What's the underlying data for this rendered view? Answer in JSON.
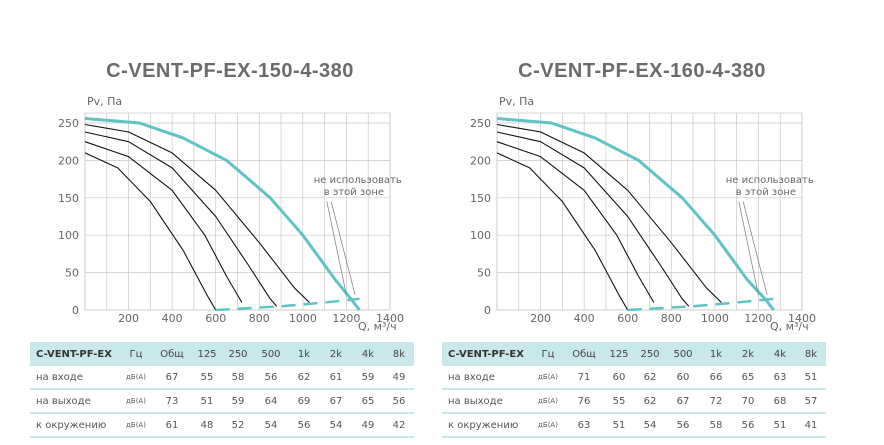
{
  "chart_data": [
    {
      "type": "line",
      "title": "C-VENT-PF-EX-150-4-380",
      "ylabel": "Pv, Па",
      "xlabel": "Q, м³/ч",
      "xlim": [
        0,
        1400
      ],
      "ylim": [
        0,
        250
      ],
      "x_ticks": [
        "200",
        "400",
        "600",
        "800",
        "1000",
        "1200",
        "1400"
      ],
      "y_ticks": [
        "0",
        "50",
        "100",
        "150",
        "200",
        "250"
      ],
      "grid": true,
      "annotation": [
        "не использовать",
        "в этой зоне"
      ],
      "series": [
        {
          "points": [
            [
              0,
              256
            ],
            [
              250,
              250
            ],
            [
              450,
              230
            ],
            [
              650,
              200
            ],
            [
              850,
              150
            ],
            [
              1000,
              100
            ],
            [
              1150,
              40
            ],
            [
              1220,
              15
            ],
            [
              1260,
              0
            ]
          ]
        },
        {
          "points": [
            [
              0,
              248
            ],
            [
              200,
              238
            ],
            [
              400,
              210
            ],
            [
              600,
              160
            ],
            [
              800,
              90
            ],
            [
              960,
              30
            ],
            [
              1030,
              10
            ]
          ]
        },
        {
          "points": [
            [
              0,
              238
            ],
            [
              200,
              225
            ],
            [
              400,
              190
            ],
            [
              600,
              125
            ],
            [
              750,
              60
            ],
            [
              850,
              15
            ],
            [
              880,
              5
            ]
          ]
        },
        {
          "points": [
            [
              0,
              225
            ],
            [
              200,
              205
            ],
            [
              400,
              160
            ],
            [
              550,
              100
            ],
            [
              650,
              45
            ],
            [
              720,
              10
            ]
          ]
        },
        {
          "points": [
            [
              0,
              210
            ],
            [
              150,
              190
            ],
            [
              300,
              145
            ],
            [
              450,
              80
            ],
            [
              560,
              20
            ],
            [
              600,
              0
            ]
          ]
        },
        {
          "points": [
            [
              600,
              0
            ],
            [
              900,
              5
            ],
            [
              1100,
              10
            ],
            [
              1260,
              15
            ]
          ]
        }
      ]
    },
    {
      "type": "line",
      "title": "C-VENT-PF-EX-160-4-380",
      "ylabel": "Pv, Па",
      "xlabel": "Q, м³/ч",
      "xlim": [
        0,
        1400
      ],
      "ylim": [
        0,
        250
      ],
      "x_ticks": [
        "200",
        "400",
        "600",
        "800",
        "1000",
        "1200",
        "1400"
      ],
      "y_ticks": [
        "0",
        "50",
        "100",
        "150",
        "200",
        "250"
      ],
      "grid": true,
      "annotation": [
        "не использовать",
        "в этой зоне"
      ],
      "series": [
        {
          "points": [
            [
              0,
              256
            ],
            [
              250,
              250
            ],
            [
              450,
              230
            ],
            [
              650,
              200
            ],
            [
              850,
              150
            ],
            [
              1000,
              100
            ],
            [
              1150,
              40
            ],
            [
              1230,
              15
            ],
            [
              1270,
              0
            ]
          ]
        },
        {
          "points": [
            [
              0,
              248
            ],
            [
              200,
              238
            ],
            [
              400,
              210
            ],
            [
              600,
              160
            ],
            [
              800,
              90
            ],
            [
              960,
              30
            ],
            [
              1030,
              10
            ]
          ]
        },
        {
          "points": [
            [
              0,
              238
            ],
            [
              200,
              225
            ],
            [
              400,
              190
            ],
            [
              600,
              125
            ],
            [
              750,
              60
            ],
            [
              850,
              15
            ],
            [
              880,
              5
            ]
          ]
        },
        {
          "points": [
            [
              0,
              225
            ],
            [
              200,
              205
            ],
            [
              400,
              160
            ],
            [
              550,
              100
            ],
            [
              650,
              45
            ],
            [
              720,
              10
            ]
          ]
        },
        {
          "points": [
            [
              0,
              210
            ],
            [
              150,
              190
            ],
            [
              300,
              145
            ],
            [
              450,
              80
            ],
            [
              560,
              20
            ],
            [
              600,
              0
            ]
          ]
        },
        {
          "points": [
            [
              600,
              0
            ],
            [
              900,
              5
            ],
            [
              1100,
              10
            ],
            [
              1270,
              15
            ]
          ]
        }
      ]
    }
  ],
  "tables": [
    {
      "header": [
        "C-VENT-PF-EX",
        "Гц",
        "Общ",
        "125",
        "250",
        "500",
        "1k",
        "2k",
        "4k",
        "8k"
      ],
      "rows": [
        {
          "label": "на входе",
          "unit": "дБ(А)",
          "values": [
            "67",
            "55",
            "58",
            "56",
            "62",
            "61",
            "59",
            "49"
          ]
        },
        {
          "label": "на выходе",
          "unit": "дБ(А)",
          "values": [
            "73",
            "51",
            "59",
            "64",
            "69",
            "67",
            "65",
            "56"
          ]
        },
        {
          "label": "к окружению",
          "unit": "дБ(А)",
          "values": [
            "61",
            "48",
            "52",
            "54",
            "56",
            "54",
            "49",
            "42"
          ]
        }
      ]
    },
    {
      "header": [
        "C-VENT-PF-EX",
        "Гц",
        "Общ",
        "125",
        "250",
        "500",
        "1k",
        "2k",
        "4k",
        "8k"
      ],
      "rows": [
        {
          "label": "на входе",
          "unit": "дБ(А)",
          "values": [
            "71",
            "60",
            "62",
            "60",
            "66",
            "65",
            "63",
            "51"
          ]
        },
        {
          "label": "на выходе",
          "unit": "дБ(А)",
          "values": [
            "76",
            "55",
            "62",
            "67",
            "72",
            "70",
            "68",
            "57"
          ]
        },
        {
          "label": "к окружению",
          "unit": "дБ(А)",
          "values": [
            "63",
            "51",
            "54",
            "56",
            "58",
            "56",
            "51",
            "41"
          ]
        }
      ]
    }
  ],
  "colors": {
    "main_curve": "#5fc3c6",
    "curves": "#111111",
    "grid": "#c8c8c8",
    "table_header": "#c8e8ea"
  }
}
